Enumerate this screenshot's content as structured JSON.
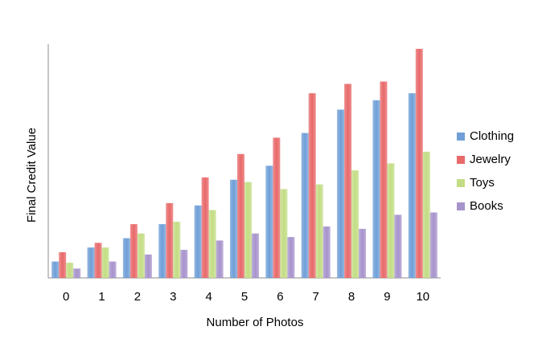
{
  "chart_data": {
    "type": "bar",
    "x_label": "Number of Photos",
    "y_label": "Final Credit Value",
    "categories": [
      "0",
      "1",
      "2",
      "3",
      "4",
      "5",
      "6",
      "7",
      "8",
      "9",
      "10"
    ],
    "series": [
      {
        "name": "Clothing",
        "color": "#6f9fd8",
        "values": [
          7,
          13,
          17,
          23,
          31,
          42,
          48,
          62,
          72,
          76,
          79
        ]
      },
      {
        "name": "Jewelry",
        "color": "#e8696a",
        "values": [
          11,
          15,
          23,
          32,
          43,
          53,
          60,
          79,
          83,
          84,
          98
        ]
      },
      {
        "name": "Toys",
        "color": "#c3dd84",
        "values": [
          6.5,
          13,
          19,
          24,
          29,
          41,
          38,
          40,
          46,
          49,
          54
        ]
      },
      {
        "name": "Books",
        "color": "#a793cc",
        "values": [
          4,
          7,
          10,
          12,
          16,
          19,
          17.5,
          22,
          21,
          27,
          28
        ]
      }
    ],
    "ylim": [
      0,
      100
    ],
    "legend": "right"
  }
}
